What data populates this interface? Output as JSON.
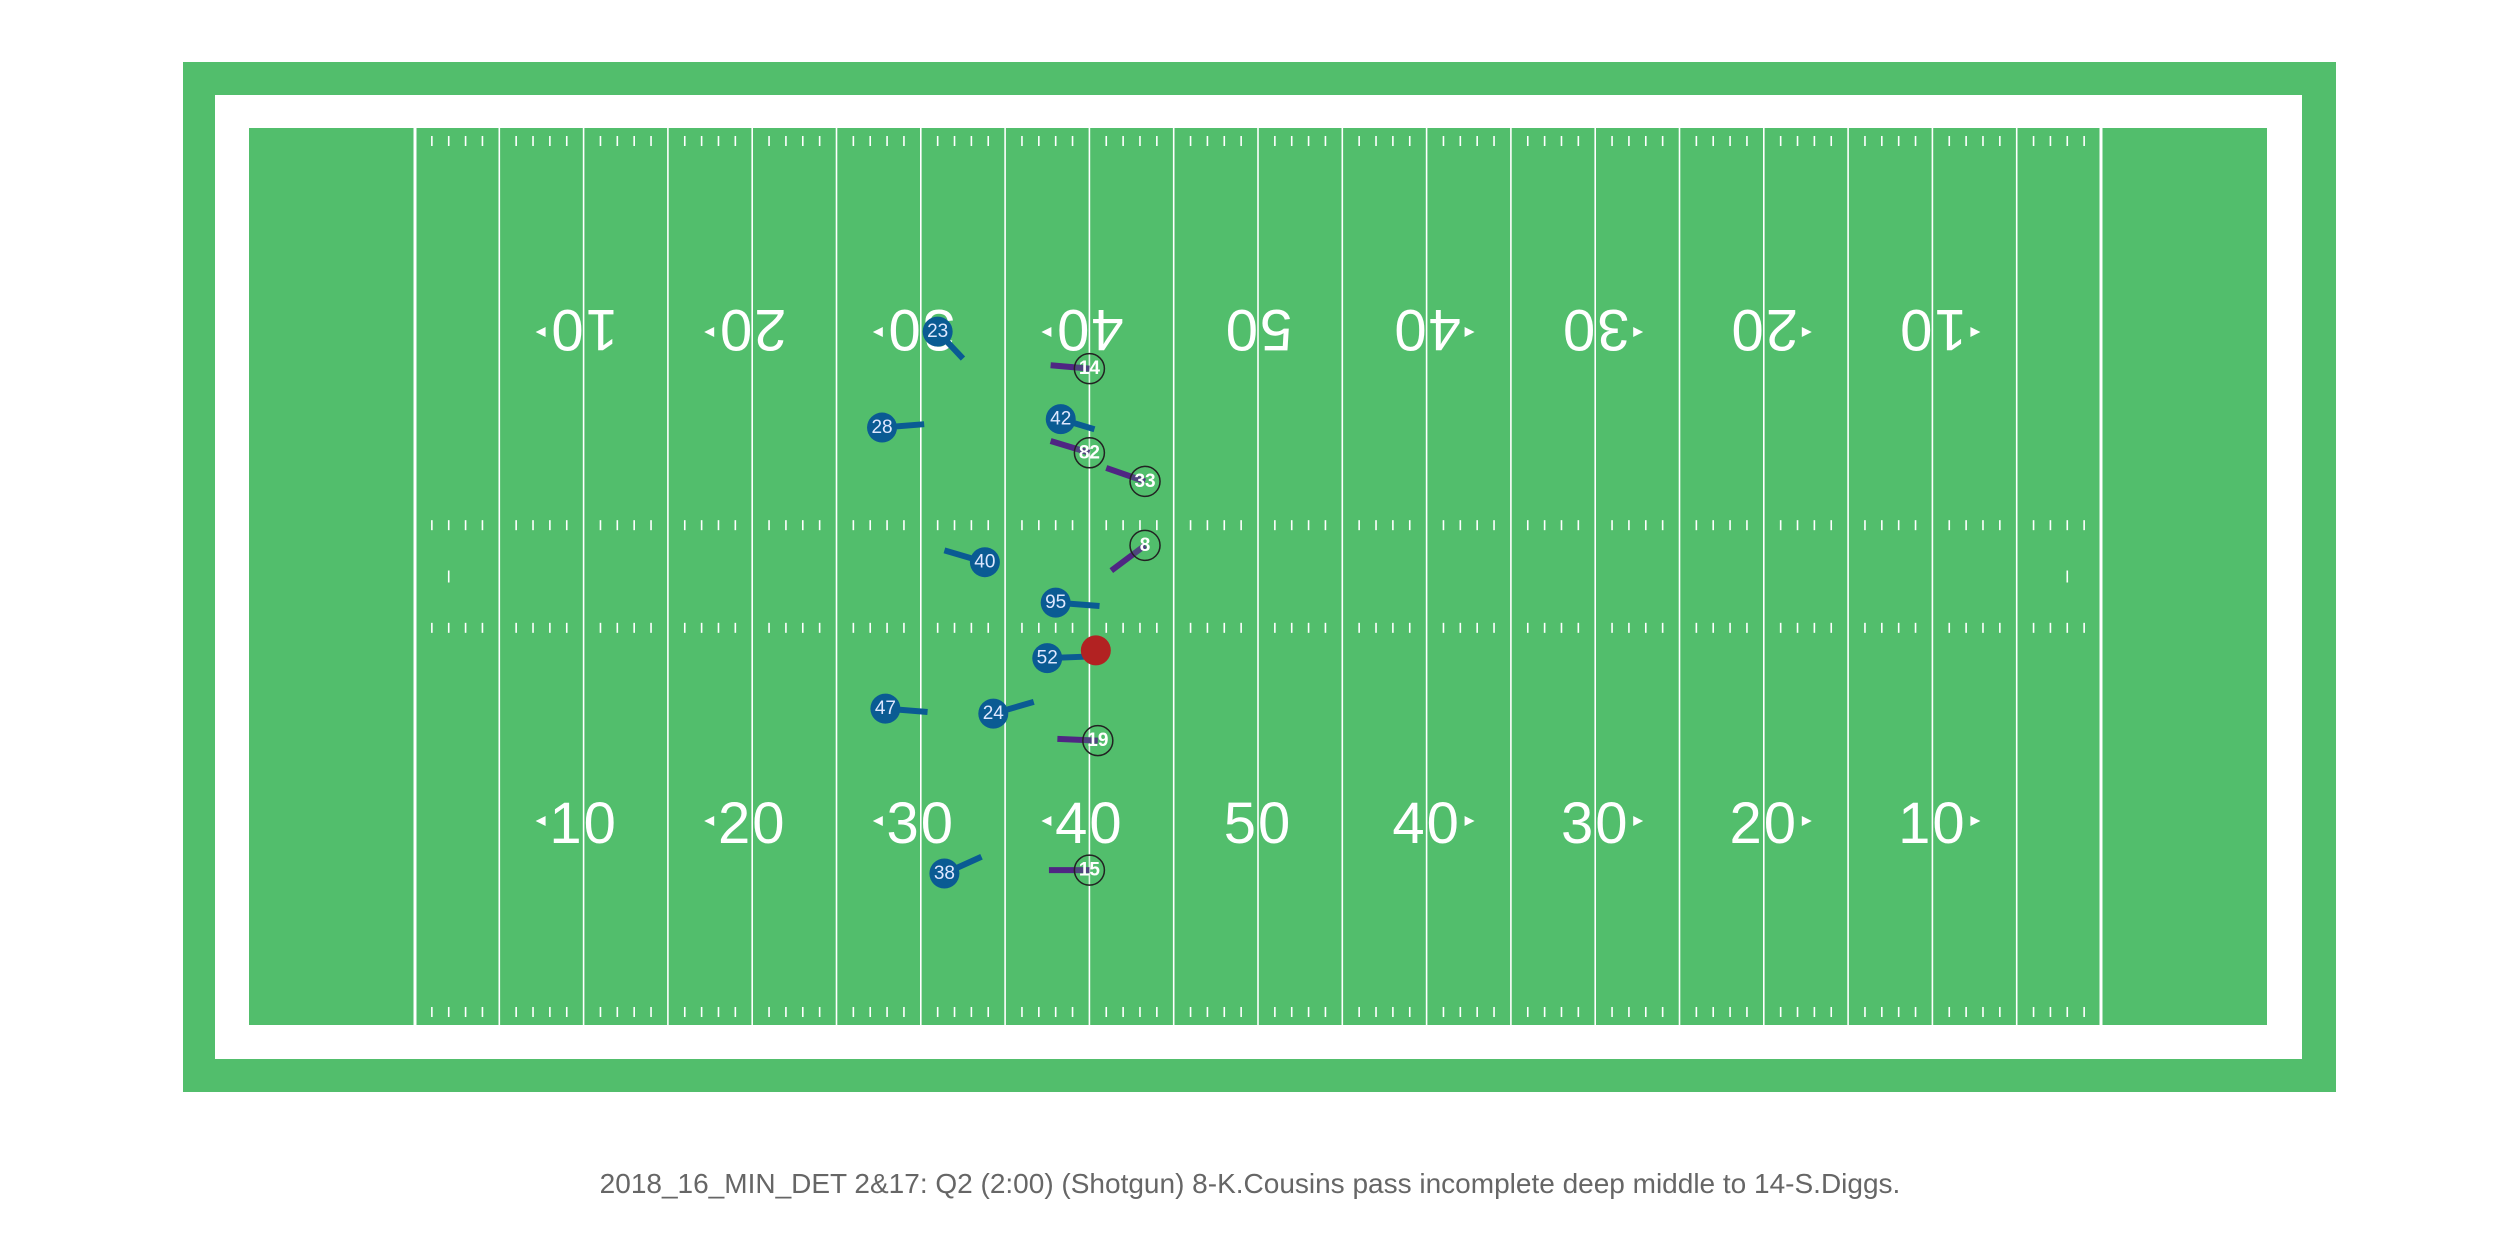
{
  "caption": "2018_16_MIN_DET 2&17: Q2 (2:00) (Shotgun) 8-K.Cousins pass incomplete deep middle to 14-S.Diggs.",
  "colors": {
    "field": "#52be6c",
    "lines": "#ffffff",
    "offense": "#4f2683",
    "defense": "#0a5b93",
    "football": "#b22222",
    "caption": "#666666"
  },
  "yard_numbers": [
    "10",
    "20",
    "30",
    "40",
    "50",
    "40",
    "30",
    "20",
    "10"
  ],
  "football": {
    "x": 50.5,
    "y": 22.5
  },
  "offense": [
    {
      "number": "14",
      "x": 50.0,
      "y": 39.0,
      "dx": -2.3,
      "dy": 0.2
    },
    {
      "number": "82",
      "x": 50.0,
      "y": 34.0,
      "dx": -2.3,
      "dy": 0.7
    },
    {
      "number": "33",
      "x": 53.3,
      "y": 32.3,
      "dx": -2.3,
      "dy": 0.8
    },
    {
      "number": "8",
      "x": 53.3,
      "y": 28.5,
      "dx": -2.0,
      "dy": -1.5
    },
    {
      "number": "19",
      "x": 50.5,
      "y": 16.9,
      "dx": -2.4,
      "dy": 0.1
    },
    {
      "number": "15",
      "x": 50.0,
      "y": 9.2,
      "dx": -2.4,
      "dy": 0.0
    }
  ],
  "defense": [
    {
      "number": "23",
      "x": 41.0,
      "y": 41.2,
      "dx": 1.5,
      "dy": -1.6
    },
    {
      "number": "28",
      "x": 37.7,
      "y": 35.5,
      "dx": 2.5,
      "dy": 0.2
    },
    {
      "number": "42",
      "x": 48.3,
      "y": 36.0,
      "dx": 2.0,
      "dy": -0.6
    },
    {
      "number": "40",
      "x": 43.8,
      "y": 27.5,
      "dx": -2.4,
      "dy": 0.7
    },
    {
      "number": "95",
      "x": 48.0,
      "y": 25.1,
      "dx": 2.6,
      "dy": -0.2
    },
    {
      "number": "52",
      "x": 47.5,
      "y": 21.8,
      "dx": 2.6,
      "dy": 0.1
    },
    {
      "number": "47",
      "x": 37.9,
      "y": 18.8,
      "dx": 2.5,
      "dy": -0.2
    },
    {
      "number": "24",
      "x": 44.3,
      "y": 18.5,
      "dx": 2.4,
      "dy": 0.7
    },
    {
      "number": "38",
      "x": 41.4,
      "y": 9.0,
      "dx": 2.2,
      "dy": 1.0
    }
  ]
}
